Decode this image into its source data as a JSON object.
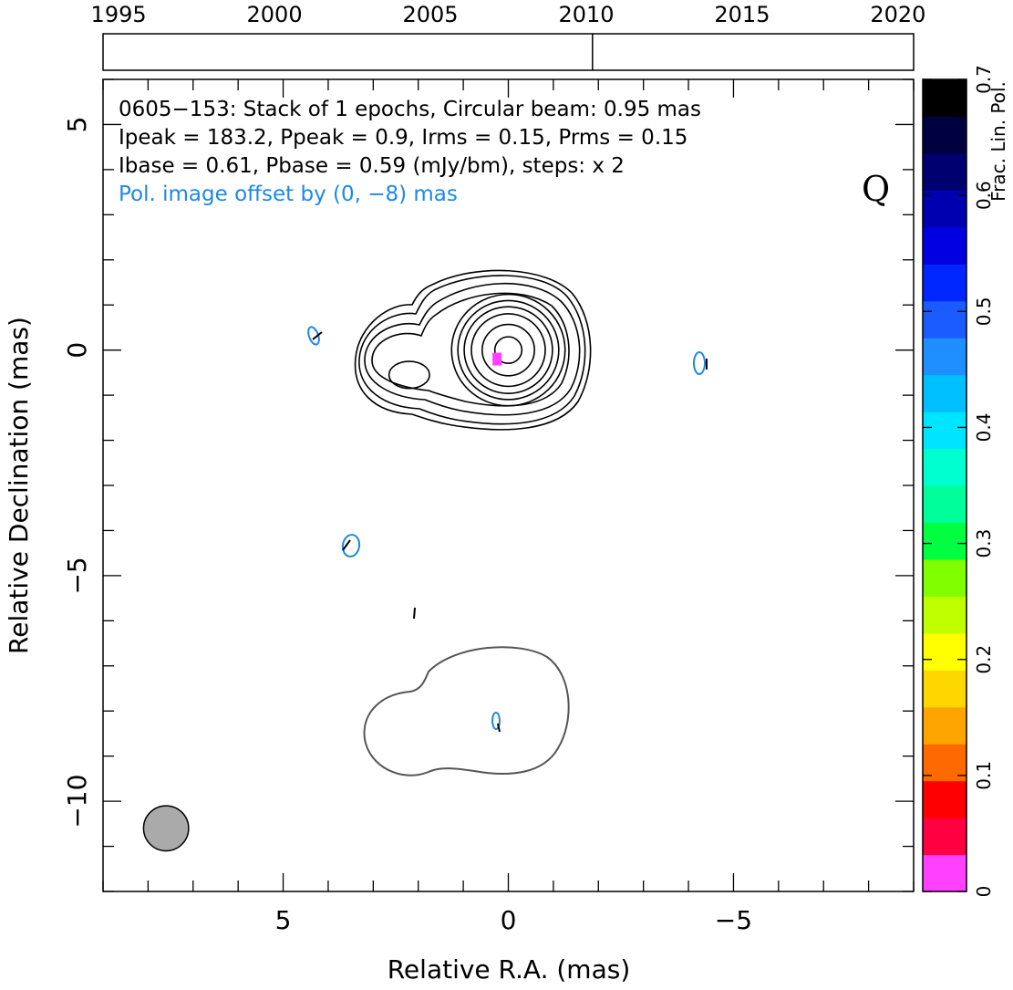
{
  "chart_data": {
    "type": "contour",
    "source": "0605−153",
    "annotations": [
      "0605−153: Stack of 1 epochs, Circular beam: 0.95 mas",
      "Ipeak = 183.2, Ppeak = 0.9, Irms = 0.15, Prms = 0.15",
      "Ibase = 0.61, Pbase = 0.59 (mJy/bm), steps: x 2"
    ],
    "offset_note": "Pol. image offset by (0, −8) mas",
    "panel_mark": "Q",
    "xlabel": "Relative R.A. (mas)",
    "ylabel": "Relative Declination (mas)",
    "xlim": [
      9,
      -9
    ],
    "ylim": [
      -12,
      6
    ],
    "xticks": [
      {
        "value": 5,
        "label": "5"
      },
      {
        "value": 0,
        "label": "0"
      },
      {
        "value": -5,
        "label": "−5"
      }
    ],
    "yticks": [
      {
        "value": 5,
        "label": "5"
      },
      {
        "value": 0,
        "label": "0"
      },
      {
        "value": -5,
        "label": "−5"
      },
      {
        "value": -10,
        "label": "−10"
      }
    ],
    "beam": {
      "x": 7.6,
      "y": -10.6,
      "radius": 0.5,
      "color": "#aaaaaa"
    },
    "timeline": {
      "years": [
        1995,
        2000,
        2005,
        2010,
        2015,
        2020
      ],
      "range": [
        1994.5,
        2020.5
      ],
      "epochs": [
        2010.2
      ]
    },
    "colorbar": {
      "label": "Frac. Lin. Pol.",
      "range": [
        0,
        0.7
      ],
      "ticks": [
        0,
        0.1,
        0.2,
        0.3,
        0.4,
        0.5,
        0.6,
        0.7
      ],
      "tick_labels": [
        "0",
        "0.1",
        "0.2",
        "0.3",
        "0.4",
        "0.5",
        "0.6",
        "0.7"
      ],
      "colors": [
        "#ff40ff",
        "#ff0040",
        "#ff0000",
        "#ff6a00",
        "#ffa500",
        "#ffd700",
        "#ffff00",
        "#c0ff00",
        "#80ff00",
        "#00ff40",
        "#00ff9a",
        "#00ffd0",
        "#00e5ff",
        "#00bfff",
        "#1f8fff",
        "#1a5cff",
        "#0026ff",
        "#0000e0",
        "#0000b0",
        "#000070",
        "#000040",
        "#000000"
      ]
    },
    "contours": {
      "core_center": [
        0,
        0
      ],
      "core_radii_mas": [
        0.3,
        0.58,
        0.82,
        0.98,
        1.12,
        1.26
      ],
      "knot_center": [
        2.2,
        -0.55
      ],
      "knot_contour": [
        0.45,
        0.3
      ],
      "outer_levels_count": 3
    },
    "pol_contour_color": "#1e88e5",
    "pol_total_contour_color": "#555555",
    "pol_peak_marker": {
      "x": 0.25,
      "y": -0.2,
      "color": "#ff40ff"
    }
  }
}
